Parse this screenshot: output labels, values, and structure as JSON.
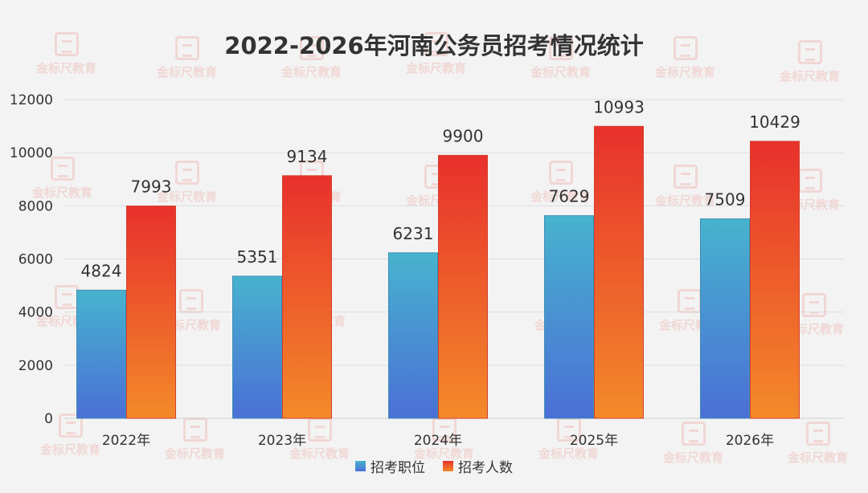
{
  "watermark": {
    "text": "金标尺教育"
  },
  "chart_data": {
    "type": "bar",
    "title": "2022-2026年河南公务员招考情况统计",
    "categories": [
      "2022年",
      "2023年",
      "2024年",
      "2025年",
      "2026年"
    ],
    "series": [
      {
        "name": "招考职位",
        "values": [
          4824,
          5351,
          6231,
          7629,
          7509
        ],
        "color_top": "#47b3ce",
        "color_bottom": "#4b6fd6"
      },
      {
        "name": "招考人数",
        "values": [
          7993,
          9134,
          9900,
          10993,
          10429
        ],
        "color_top": "#e8302c",
        "color_bottom": "#f38a2a"
      }
    ],
    "ylim": [
      0,
      12000
    ],
    "yticks": [
      0,
      2000,
      4000,
      6000,
      8000,
      10000,
      12000
    ],
    "xlabel": "",
    "ylabel": "",
    "grid": true,
    "legend_position": "bottom"
  }
}
